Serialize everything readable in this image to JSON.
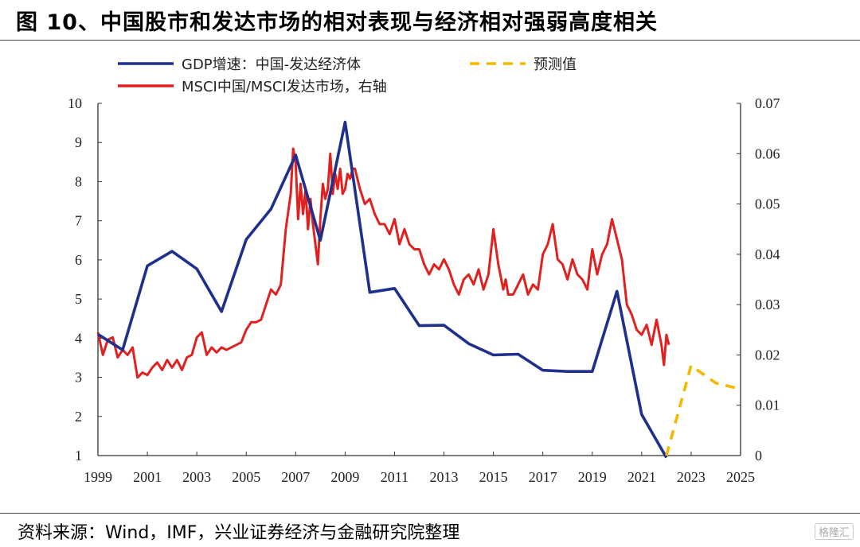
{
  "figure_title": "图 10、中国股市和发达市场的相对表现与经济相对强弱高度相关",
  "source_note": "资料来源：Wind，IMF，兴业证券经济与金融研究院整理",
  "watermark": "格隆汇",
  "colors": {
    "gdp": "#1f2f8c",
    "msci": "#e0211f",
    "forecast": "#f5b800"
  },
  "chart_data": {
    "type": "line",
    "x_ticks": [
      "1999",
      "2001",
      "2003",
      "2005",
      "2007",
      "2009",
      "2011",
      "2013",
      "2015",
      "2017",
      "2019",
      "2021",
      "2023",
      "2025"
    ],
    "x_range": [
      1999,
      2025
    ],
    "y_left": {
      "range": [
        1,
        10
      ],
      "ticks": [
        "1",
        "2",
        "3",
        "4",
        "5",
        "6",
        "7",
        "8",
        "9",
        "10"
      ]
    },
    "y_right": {
      "range": [
        0,
        0.07
      ],
      "ticks": [
        "0",
        "0.01",
        "0.02",
        "0.03",
        "0.04",
        "0.05",
        "0.06",
        "0.07"
      ]
    },
    "grid": false,
    "legend": "top",
    "series": [
      {
        "name": "GDP增速：中国-发达经济体",
        "axis": "left",
        "style": "solid",
        "x": [
          1999,
          2000,
          2001,
          2002,
          2003,
          2004,
          2005,
          2006,
          2007,
          2008,
          2009,
          2010,
          2011,
          2012,
          2013,
          2014,
          2015,
          2016,
          2017,
          2018,
          2019,
          2020,
          2021,
          2022
        ],
        "y": [
          4.1,
          3.7,
          5.85,
          6.22,
          5.77,
          4.68,
          6.52,
          7.3,
          8.68,
          6.5,
          9.52,
          5.17,
          5.27,
          4.32,
          4.33,
          3.86,
          3.57,
          3.59,
          3.18,
          3.15,
          3.15,
          5.2,
          2.05,
          0.95
        ]
      },
      {
        "name": "预测值",
        "axis": "left",
        "style": "dashed",
        "x": [
          2022,
          2023,
          2024,
          2025
        ],
        "y": [
          1.0,
          3.3,
          2.85,
          2.7
        ]
      },
      {
        "name": "MSCI中国/MSCI发达市场，右轴",
        "axis": "right",
        "style": "solid",
        "x": [
          1999.0,
          1999.2,
          1999.4,
          1999.6,
          1999.8,
          2000.0,
          2000.2,
          2000.4,
          2000.6,
          2000.8,
          2001.0,
          2001.2,
          2001.4,
          2001.6,
          2001.8,
          2002.0,
          2002.2,
          2002.4,
          2002.6,
          2002.8,
          2003.0,
          2003.2,
          2003.4,
          2003.6,
          2003.8,
          2004.0,
          2004.2,
          2004.4,
          2004.6,
          2004.8,
          2005.0,
          2005.2,
          2005.4,
          2005.6,
          2005.8,
          2006.0,
          2006.2,
          2006.4,
          2006.6,
          2006.8,
          2006.9,
          2007.0,
          2007.1,
          2007.2,
          2007.3,
          2007.4,
          2007.5,
          2007.6,
          2007.7,
          2007.8,
          2007.9,
          2008.0,
          2008.1,
          2008.2,
          2008.3,
          2008.4,
          2008.5,
          2008.6,
          2008.7,
          2008.8,
          2008.9,
          2009.0,
          2009.1,
          2009.2,
          2009.3,
          2009.4,
          2009.6,
          2009.8,
          2010.0,
          2010.2,
          2010.4,
          2010.6,
          2010.8,
          2011.0,
          2011.2,
          2011.4,
          2011.6,
          2011.8,
          2012.0,
          2012.2,
          2012.4,
          2012.6,
          2012.8,
          2013.0,
          2013.2,
          2013.4,
          2013.6,
          2013.8,
          2014.0,
          2014.2,
          2014.4,
          2014.6,
          2014.8,
          2015.0,
          2015.2,
          2015.4,
          2015.5,
          2015.6,
          2015.8,
          2016.0,
          2016.2,
          2016.4,
          2016.6,
          2016.8,
          2017.0,
          2017.2,
          2017.4,
          2017.6,
          2017.8,
          2018.0,
          2018.2,
          2018.4,
          2018.6,
          2018.8,
          2019.0,
          2019.2,
          2019.4,
          2019.6,
          2019.8,
          2020.0,
          2020.2,
          2020.4,
          2020.6,
          2020.8,
          2021.0,
          2021.2,
          2021.4,
          2021.6,
          2021.8,
          2021.9,
          2022.0,
          2022.1
        ],
        "y": [
          0.0245,
          0.02,
          0.023,
          0.0235,
          0.0195,
          0.021,
          0.02,
          0.0215,
          0.0155,
          0.0165,
          0.016,
          0.0175,
          0.0185,
          0.017,
          0.019,
          0.0175,
          0.019,
          0.017,
          0.0195,
          0.02,
          0.0235,
          0.0245,
          0.02,
          0.0215,
          0.0205,
          0.0215,
          0.021,
          0.0215,
          0.022,
          0.0225,
          0.025,
          0.0265,
          0.0265,
          0.027,
          0.03,
          0.033,
          0.032,
          0.034,
          0.045,
          0.052,
          0.061,
          0.058,
          0.047,
          0.054,
          0.048,
          0.053,
          0.045,
          0.051,
          0.046,
          0.042,
          0.038,
          0.047,
          0.054,
          0.051,
          0.053,
          0.06,
          0.052,
          0.056,
          0.053,
          0.057,
          0.052,
          0.053,
          0.056,
          0.055,
          0.057,
          0.057,
          0.053,
          0.05,
          0.051,
          0.048,
          0.046,
          0.046,
          0.044,
          0.047,
          0.042,
          0.045,
          0.042,
          0.041,
          0.041,
          0.038,
          0.036,
          0.038,
          0.037,
          0.039,
          0.037,
          0.034,
          0.032,
          0.035,
          0.036,
          0.034,
          0.037,
          0.033,
          0.036,
          0.045,
          0.038,
          0.033,
          0.035,
          0.032,
          0.032,
          0.034,
          0.036,
          0.032,
          0.034,
          0.033,
          0.04,
          0.042,
          0.046,
          0.039,
          0.038,
          0.035,
          0.039,
          0.036,
          0.035,
          0.033,
          0.041,
          0.036,
          0.04,
          0.042,
          0.047,
          0.043,
          0.039,
          0.03,
          0.028,
          0.025,
          0.024,
          0.026,
          0.022,
          0.027,
          0.022,
          0.018,
          0.024,
          0.022
        ]
      }
    ]
  }
}
